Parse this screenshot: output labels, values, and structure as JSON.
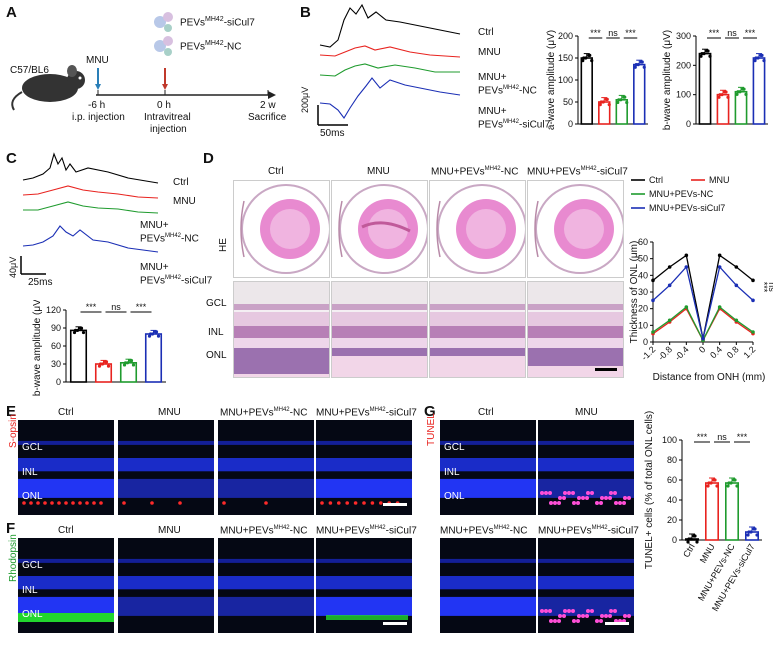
{
  "panels": {
    "A": "A",
    "B": "B",
    "C": "C",
    "D": "D",
    "E": "E",
    "F": "F",
    "G": "G"
  },
  "panelA": {
    "mouse": "C57/BL6",
    "treat1": "MNU",
    "vec1_pre": "PEVs",
    "vec1_sup": "MH42",
    "vec1_suf": "-siCul7",
    "vec2_pre": "PEVs",
    "vec2_sup": "MH42",
    "vec2_suf": "-NC",
    "t1": "-6 h",
    "t1_desc": "i.p. injection",
    "t2": "0 h",
    "t2_desc1": "Intravitreal",
    "t2_desc2": "injection",
    "t3": "2 w",
    "t3_desc": "Sacrifice"
  },
  "groups": {
    "ctrl": "Ctrl",
    "mnu": "MNU",
    "mnu_plus": "MNU+",
    "pevs": "PEVs",
    "sup": "MH42",
    "nc": "-NC",
    "sicul7": "-siCul7",
    "mnu_pevs": "MNU+PEVs"
  },
  "scalebars": {
    "B_amp": "200μV",
    "B_time": "50ms",
    "C_amp": "40μV",
    "C_time": "25ms"
  },
  "sig": {
    "s3": "***",
    "ns": "ns"
  },
  "colors": {
    "ctrl": "#000000",
    "mnu": "#e8231f",
    "nc": "#1f9b2e",
    "sicul7": "#1b2fb5"
  },
  "chart_data": [
    {
      "type": "bar",
      "panel": "B-left",
      "ylabel": "a-wave amplitude (μV)",
      "categories": [
        "Ctrl",
        "MNU",
        "MNU+PEVs-NC",
        "MNU+PEVs-siCul7"
      ],
      "values": [
        150,
        50,
        55,
        135
      ],
      "ylim": [
        0,
        200
      ],
      "yticks": [
        0,
        50,
        100,
        150,
        200
      ]
    },
    {
      "type": "bar",
      "panel": "B-right",
      "ylabel": "b-wave amplitude (μV)",
      "categories": [
        "Ctrl",
        "MNU",
        "MNU+PEVs-NC",
        "MNU+PEVs-siCul7"
      ],
      "values": [
        240,
        100,
        110,
        225
      ],
      "ylim": [
        0,
        300
      ],
      "yticks": [
        0,
        100,
        200,
        300
      ]
    },
    {
      "type": "bar",
      "panel": "C",
      "ylabel": "b-wave amplitude (μV)",
      "categories": [
        "Ctrl",
        "MNU",
        "MNU+PEVs-NC",
        "MNU+PEVs-siCul7"
      ],
      "values": [
        86,
        30,
        32,
        80
      ],
      "ylim": [
        0,
        120
      ],
      "yticks": [
        0,
        30,
        60,
        90,
        120
      ]
    },
    {
      "type": "line",
      "panel": "D",
      "ylabel": "Thickness of ONL (μm)",
      "xlabel": "Distance from ONH (mm)",
      "x": [
        -1.2,
        -0.8,
        -0.4,
        0,
        0.4,
        0.8,
        1.2
      ],
      "xticks": [
        "-1.2",
        "-0.8",
        "-0.4",
        "0",
        "0.4",
        "0.8",
        "1.2"
      ],
      "ylim": [
        0,
        60
      ],
      "yticks": [
        0,
        10,
        20,
        30,
        40,
        50,
        60
      ],
      "series": [
        {
          "name": "Ctrl",
          "values": [
            37,
            45,
            52,
            2,
            52,
            45,
            37
          ]
        },
        {
          "name": "MNU",
          "values": [
            5,
            12,
            20,
            1,
            20,
            12,
            5
          ]
        },
        {
          "name": "MNU+PEVs-NC",
          "values": [
            6,
            13,
            21,
            1,
            21,
            13,
            6
          ]
        },
        {
          "name": "MNU+PEVs-siCul7",
          "values": [
            25,
            34,
            45,
            2,
            45,
            34,
            25
          ]
        }
      ],
      "annotations": [
        "***",
        "ns"
      ]
    },
    {
      "type": "bar",
      "panel": "G",
      "ylabel": "TUNEL+ cells (% of total ONL cells)",
      "categories": [
        "Ctrl",
        "MNU",
        "MNU+PEVs-NC",
        "MNU+PEVs-siCul7"
      ],
      "values": [
        1,
        57,
        57,
        8
      ],
      "ylim": [
        0,
        100
      ],
      "yticks": [
        0,
        20,
        40,
        60,
        80,
        100
      ]
    }
  ],
  "panelD": {
    "he_label": "HE",
    "layers": [
      "GCL",
      "INL",
      "ONL"
    ]
  },
  "panelE": {
    "stain": "S-opsin",
    "layers": [
      "GCL",
      "INL",
      "ONL"
    ]
  },
  "panelF": {
    "stain": "Rhodopsin",
    "layers": [
      "GCL",
      "INL",
      "ONL"
    ]
  },
  "panelG": {
    "stain": "TUNEL",
    "layers": [
      "GCL",
      "INL",
      "ONL"
    ],
    "ylabel1": "TUNEL",
    "ylabel_sup": "+",
    "ylabel2": " cells",
    "ylabel3": "(% of total ONL cells)"
  }
}
